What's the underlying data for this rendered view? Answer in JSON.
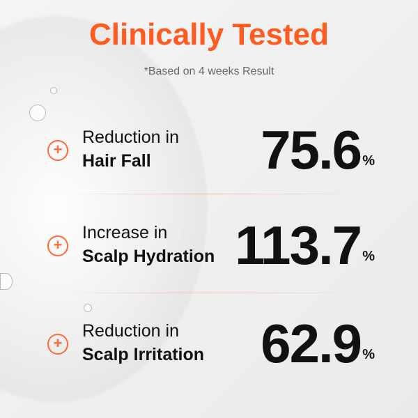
{
  "title": "Clinically Tested",
  "subtitle": "*Based on 4 weeks Result",
  "accent_color": "#ff5a1f",
  "stats": [
    {
      "icon": "plus-circle-icon",
      "line1": "Reduction in",
      "line2": "Hair Fall",
      "value": "75.6",
      "unit": "%"
    },
    {
      "icon": "plus-circle-icon",
      "line1": "Increase in",
      "line2": "Scalp Hydration",
      "value": "113.7",
      "unit": "%"
    },
    {
      "icon": "plus-circle-icon",
      "line1": "Reduction in",
      "line2": "Scalp Irritation",
      "value": "62.9",
      "unit": "%"
    }
  ]
}
